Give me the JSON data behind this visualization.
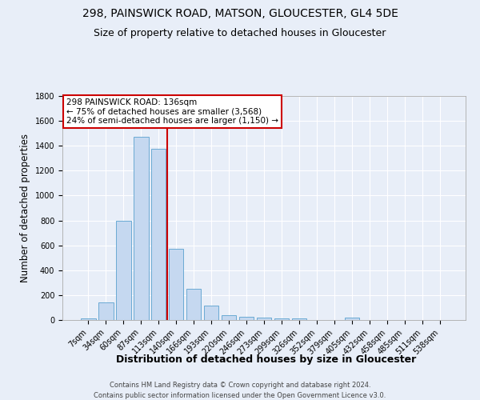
{
  "title_line1": "298, PAINSWICK ROAD, MATSON, GLOUCESTER, GL4 5DE",
  "title_line2": "Size of property relative to detached houses in Gloucester",
  "xlabel": "Distribution of detached houses by size in Gloucester",
  "ylabel": "Number of detached properties",
  "categories": [
    "7sqm",
    "34sqm",
    "60sqm",
    "87sqm",
    "113sqm",
    "140sqm",
    "166sqm",
    "193sqm",
    "220sqm",
    "246sqm",
    "273sqm",
    "299sqm",
    "326sqm",
    "352sqm",
    "379sqm",
    "405sqm",
    "432sqm",
    "458sqm",
    "485sqm",
    "511sqm",
    "538sqm"
  ],
  "values": [
    10,
    140,
    795,
    1470,
    1375,
    575,
    248,
    115,
    37,
    27,
    22,
    15,
    15,
    0,
    0,
    20,
    0,
    0,
    0,
    0,
    0
  ],
  "bar_color": "#c5d8f0",
  "bar_edgecolor": "#6aaad4",
  "bar_width": 0.85,
  "vline_x": 4.5,
  "vline_color": "#cc0000",
  "annotation_text_line1": "298 PAINSWICK ROAD: 136sqm",
  "annotation_text_line2": "← 75% of detached houses are smaller (3,568)",
  "annotation_text_line3": "24% of semi-detached houses are larger (1,150) →",
  "ylim": [
    0,
    1800
  ],
  "yticks": [
    0,
    200,
    400,
    600,
    800,
    1000,
    1200,
    1400,
    1600,
    1800
  ],
  "footnote1": "Contains HM Land Registry data © Crown copyright and database right 2024.",
  "footnote2": "Contains public sector information licensed under the Open Government Licence v3.0.",
  "background_color": "#e8eef8",
  "grid_color": "#ffffff",
  "title_fontsize": 10,
  "subtitle_fontsize": 9,
  "tick_fontsize": 7,
  "ylabel_fontsize": 8.5,
  "xlabel_fontsize": 9
}
